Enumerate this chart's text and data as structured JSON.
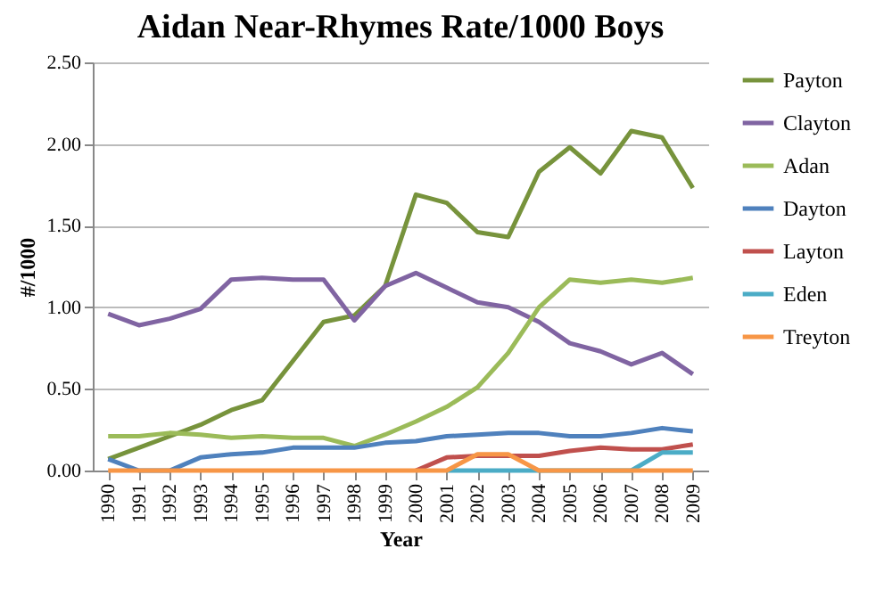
{
  "chart_data": {
    "type": "line",
    "title": "Aidan Near-Rhymes Rate/1000 Boys",
    "xlabel": "Year",
    "ylabel": "#/1000",
    "categories": [
      "1990",
      "1991",
      "1992",
      "1993",
      "1994",
      "1995",
      "1996",
      "1997",
      "1998",
      "1999",
      "2000",
      "2001",
      "2002",
      "2003",
      "2004",
      "2005",
      "2006",
      "2007",
      "2008",
      "2009"
    ],
    "series": [
      {
        "name": "Payton",
        "color": "#77933c",
        "values": [
          0.07,
          0.14,
          0.21,
          0.28,
          0.37,
          0.43,
          0.67,
          0.91,
          0.95,
          1.13,
          1.69,
          1.64,
          1.46,
          1.43,
          1.83,
          1.98,
          1.82,
          2.08,
          2.04,
          1.73
        ]
      },
      {
        "name": "Clayton",
        "color": "#8064a2",
        "values": [
          0.96,
          0.89,
          0.93,
          0.99,
          1.17,
          1.18,
          1.17,
          1.17,
          0.92,
          1.13,
          1.21,
          1.12,
          1.03,
          1.0,
          0.91,
          0.78,
          0.73,
          0.65,
          0.72,
          0.59
        ]
      },
      {
        "name": "Adan",
        "color": "#9bbb59",
        "values": [
          0.21,
          0.21,
          0.23,
          0.22,
          0.2,
          0.21,
          0.2,
          0.2,
          0.15,
          0.22,
          0.3,
          0.39,
          0.51,
          0.72,
          1.0,
          1.17,
          1.15,
          1.17,
          1.15,
          1.18
        ]
      },
      {
        "name": "Dayton",
        "color": "#4f81bd",
        "values": [
          0.07,
          0,
          0,
          0.08,
          0.1,
          0.11,
          0.14,
          0.14,
          0.14,
          0.17,
          0.18,
          0.21,
          0.22,
          0.23,
          0.23,
          0.21,
          0.21,
          0.23,
          0.26,
          0.24
        ]
      },
      {
        "name": "Layton",
        "color": "#c0504d",
        "values": [
          null,
          null,
          null,
          null,
          null,
          null,
          null,
          null,
          null,
          null,
          0,
          0.08,
          0.09,
          0.09,
          0.09,
          0.12,
          0.14,
          0.13,
          0.13,
          0.16
        ]
      },
      {
        "name": "Eden",
        "color": "#4bacc6",
        "values": [
          null,
          null,
          null,
          null,
          null,
          null,
          null,
          null,
          null,
          null,
          null,
          0,
          0,
          0,
          0,
          0,
          0,
          0,
          0.11,
          0.11
        ]
      },
      {
        "name": "Treyton",
        "color": "#f79646",
        "values": [
          0,
          0,
          0,
          0,
          0,
          0,
          0,
          0,
          0,
          0,
          0,
          0,
          0.1,
          0.1,
          0,
          0,
          0,
          0,
          0,
          0
        ]
      }
    ],
    "ylim": [
      0,
      2.5
    ],
    "yticks": [
      {
        "value": 0,
        "label": "0.00"
      },
      {
        "value": 0.5,
        "label": "0.50"
      },
      {
        "value": 1,
        "label": "1.00"
      },
      {
        "value": 1.5,
        "label": "1.50"
      },
      {
        "value": 2,
        "label": "2.00"
      },
      {
        "value": 2.5,
        "label": "2.50"
      }
    ],
    "grid": "y",
    "legend": "right",
    "line_style": "solid"
  }
}
